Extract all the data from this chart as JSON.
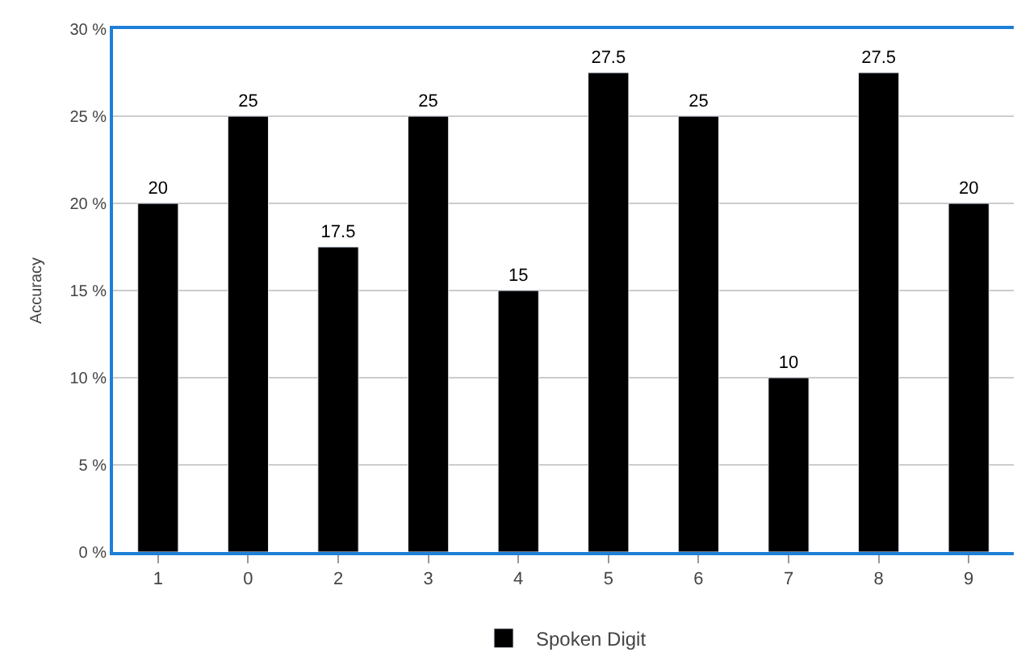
{
  "chart_data": {
    "type": "bar",
    "ylabel": "Accuracy",
    "categories": [
      "1",
      "0",
      "2",
      "3",
      "4",
      "5",
      "6",
      "7",
      "8",
      "9"
    ],
    "series": [
      {
        "name": "Spoken Digit",
        "color": "#000000",
        "values": [
          20,
          25,
          17.5,
          25,
          15,
          27.5,
          25,
          10,
          27.5,
          20
        ]
      }
    ],
    "ylim": [
      0,
      30
    ],
    "yticks": [
      {
        "value": 0,
        "label": "0 %"
      },
      {
        "value": 5,
        "label": "5 %"
      },
      {
        "value": 10,
        "label": "10 %"
      },
      {
        "value": 15,
        "label": "15 %"
      },
      {
        "value": 20,
        "label": "20 %"
      },
      {
        "value": 25,
        "label": "25 %"
      },
      {
        "value": 30,
        "label": "30 %"
      }
    ],
    "grid": "y",
    "legend": "bottom",
    "data_labels": true
  }
}
